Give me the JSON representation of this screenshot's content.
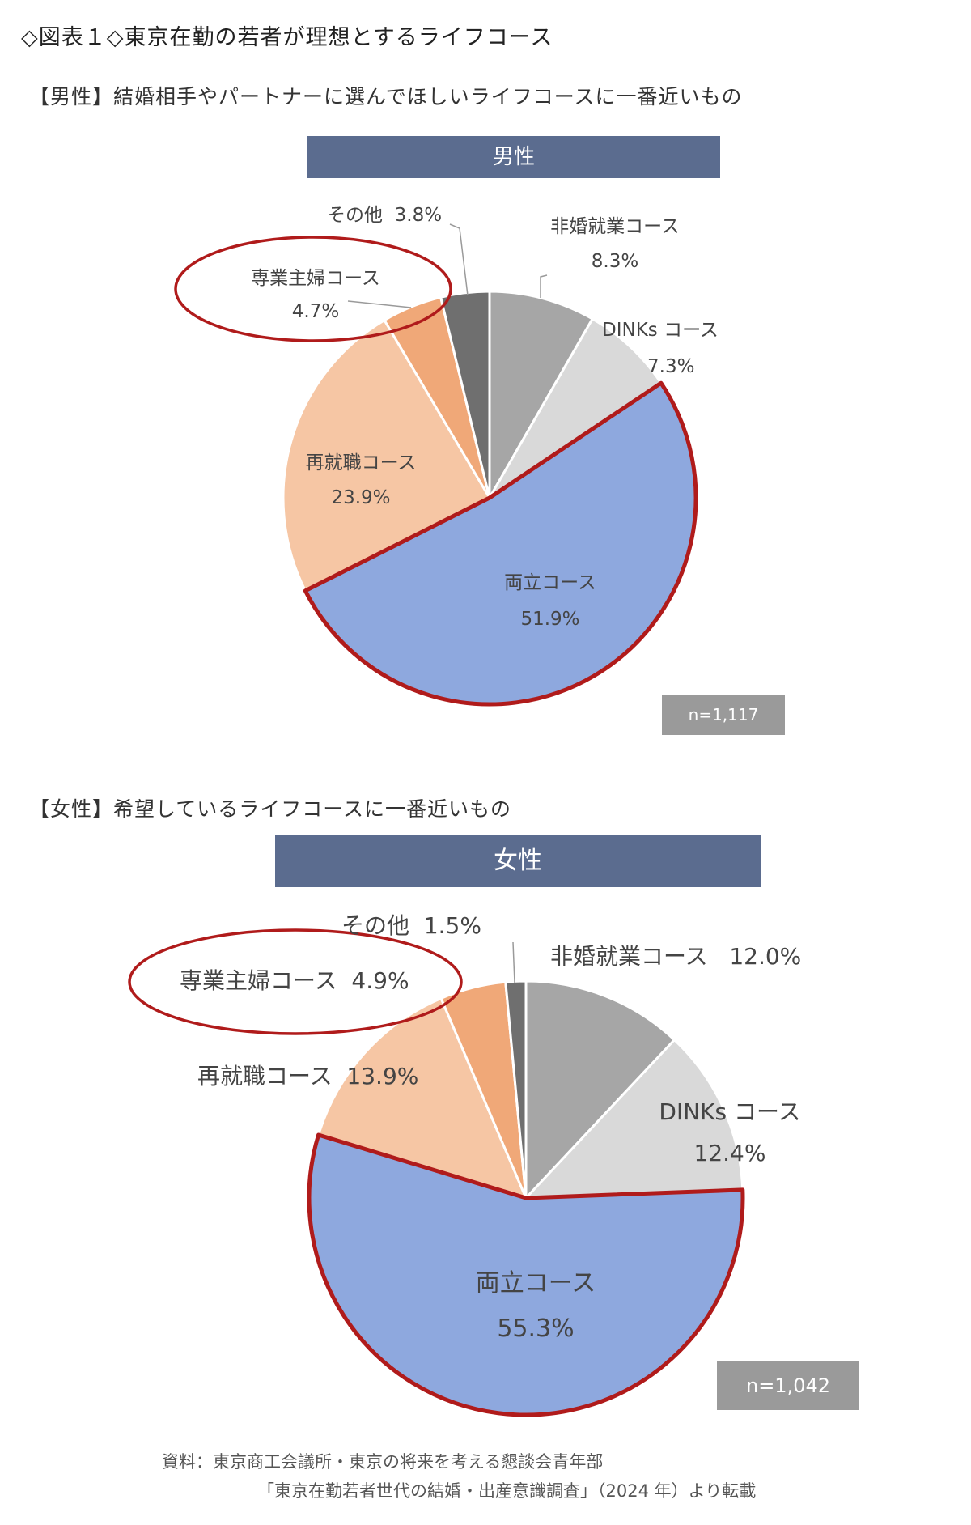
{
  "figure_title": "◇図表１◇東京在勤の若者が理想とするライフコース",
  "colors": {
    "banner": "#5b6c8f",
    "dark_gray": "#6f6f6f",
    "mid_gray": "#a6a6a6",
    "light_gray": "#d9d9d9",
    "blue": "#8ea8de",
    "peach": "#f6c6a4",
    "orange": "#f0a878",
    "highlight_red": "#b01b1b",
    "n_box": "#9a9a9a"
  },
  "chart_data": [
    {
      "type": "pie",
      "title": "男性",
      "subtitle": "【男性】結婚相手やパートナーに選んでほしいライフコースに一番近いもの",
      "n_label": "n=1,117",
      "slices": [
        {
          "label": "非婚就業コース",
          "value": 8.3,
          "value_label": "8.3%",
          "color": "#a6a6a6"
        },
        {
          "label": "DINKs コース",
          "value": 7.3,
          "value_label": "7.3%",
          "color": "#d9d9d9"
        },
        {
          "label": "両立コース",
          "value": 51.9,
          "value_label": "51.9%",
          "color": "#8ea8de",
          "highlight": true
        },
        {
          "label": "再就職コース",
          "value": 23.9,
          "value_label": "23.9%",
          "color": "#f6c6a4"
        },
        {
          "label": "専業主婦コース",
          "value": 4.7,
          "value_label": "4.7%",
          "color": "#f0a878",
          "circled": true
        },
        {
          "label": "その他",
          "value": 3.8,
          "value_label": "3.8%",
          "color": "#6f6f6f"
        }
      ]
    },
    {
      "type": "pie",
      "title": "女性",
      "subtitle": "【女性】希望しているライフコースに一番近いもの",
      "n_label": "n=1,042",
      "slices": [
        {
          "label": "非婚就業コース",
          "value": 12.0,
          "value_label": "12.0%",
          "color": "#a6a6a6"
        },
        {
          "label": "DINKs コース",
          "value": 12.4,
          "value_label": "12.4%",
          "color": "#d9d9d9"
        },
        {
          "label": "両立コース",
          "value": 55.3,
          "value_label": "55.3%",
          "color": "#8ea8de",
          "highlight": true
        },
        {
          "label": "再就職コース",
          "value": 13.9,
          "value_label": "13.9%",
          "color": "#f6c6a4"
        },
        {
          "label": "専業主婦コース",
          "value": 4.9,
          "value_label": "4.9%",
          "color": "#f0a878",
          "circled": true
        },
        {
          "label": "その他",
          "value": 1.5,
          "value_label": "1.5%",
          "color": "#6f6f6f"
        }
      ]
    }
  ],
  "source": {
    "line1": "資料：東京商工会議所・東京の将来を考える懇談会青年部",
    "line2": "「東京在勤若者世代の結婚・出産意識調査」（2024 年）より転載"
  }
}
